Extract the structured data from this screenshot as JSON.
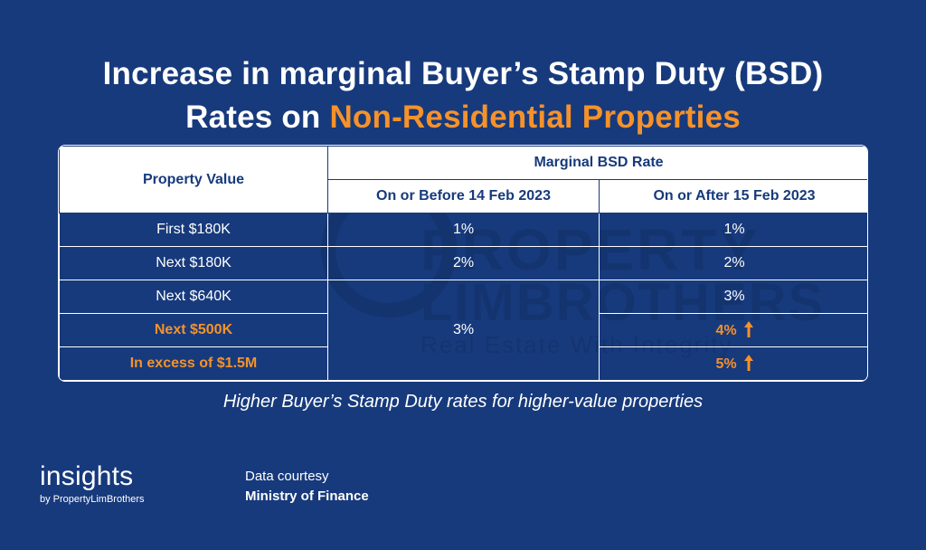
{
  "title": {
    "line1": "Increase in marginal Buyer’s Stamp Duty (BSD)",
    "line2_prefix": "Rates on ",
    "line2_accent": "Non-Residential Properties"
  },
  "colors": {
    "background": "#173a7c",
    "accent": "#f5922b",
    "header_bg": "#ffffff"
  },
  "watermark": {
    "line1": "PROPERTY",
    "line2": "LIMBROTHERS",
    "line3": "Real Estate With Integrity"
  },
  "table": {
    "header_property": "Property Value",
    "header_group": "Marginal BSD Rate",
    "header_before": "On or Before 14 Feb 2023",
    "header_after": "On or After 15 Feb 2023",
    "rows": [
      {
        "property": "First $180K",
        "before": "1%",
        "after": "1%",
        "highlight": false
      },
      {
        "property": "Next $180K",
        "before": "2%",
        "after": "2%",
        "highlight": false
      },
      {
        "property": "Next $640K",
        "after": "3%",
        "highlight": false
      },
      {
        "property": "Next $500K",
        "after": "4%",
        "highlight": true,
        "arrow": "up-arrow-icon"
      },
      {
        "property": "In excess of $1.5M",
        "after": "5%",
        "highlight": true,
        "arrow": "up-arrow-icon"
      }
    ],
    "merged_before": "3%"
  },
  "caption": "Higher Buyer’s Stamp Duty rates for higher-value properties",
  "brand": {
    "main": "insights",
    "sub": "by PropertyLimBrothers"
  },
  "source": {
    "label": "Data courtesy",
    "org": "Ministry of Finance"
  }
}
